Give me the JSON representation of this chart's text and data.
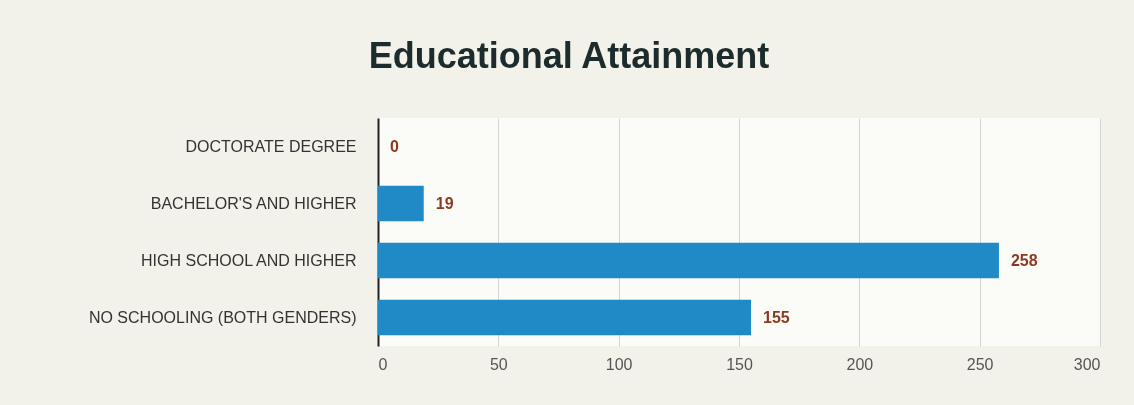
{
  "chart_data": {
    "type": "bar",
    "orientation": "horizontal",
    "title": "Educational Attainment",
    "categories": [
      "DOCTORATE DEGREE",
      "BACHELOR'S AND HIGHER",
      "HIGH SCHOOL AND HIGHER",
      "NO SCHOOLING (BOTH GENDERS)"
    ],
    "values": [
      0,
      19,
      258,
      155
    ],
    "color": "#1f8ac6",
    "xlim": [
      0,
      300
    ],
    "xticks": [
      0,
      50,
      100,
      150,
      200,
      250,
      300
    ],
    "grid": "x",
    "data_labels": true
  }
}
